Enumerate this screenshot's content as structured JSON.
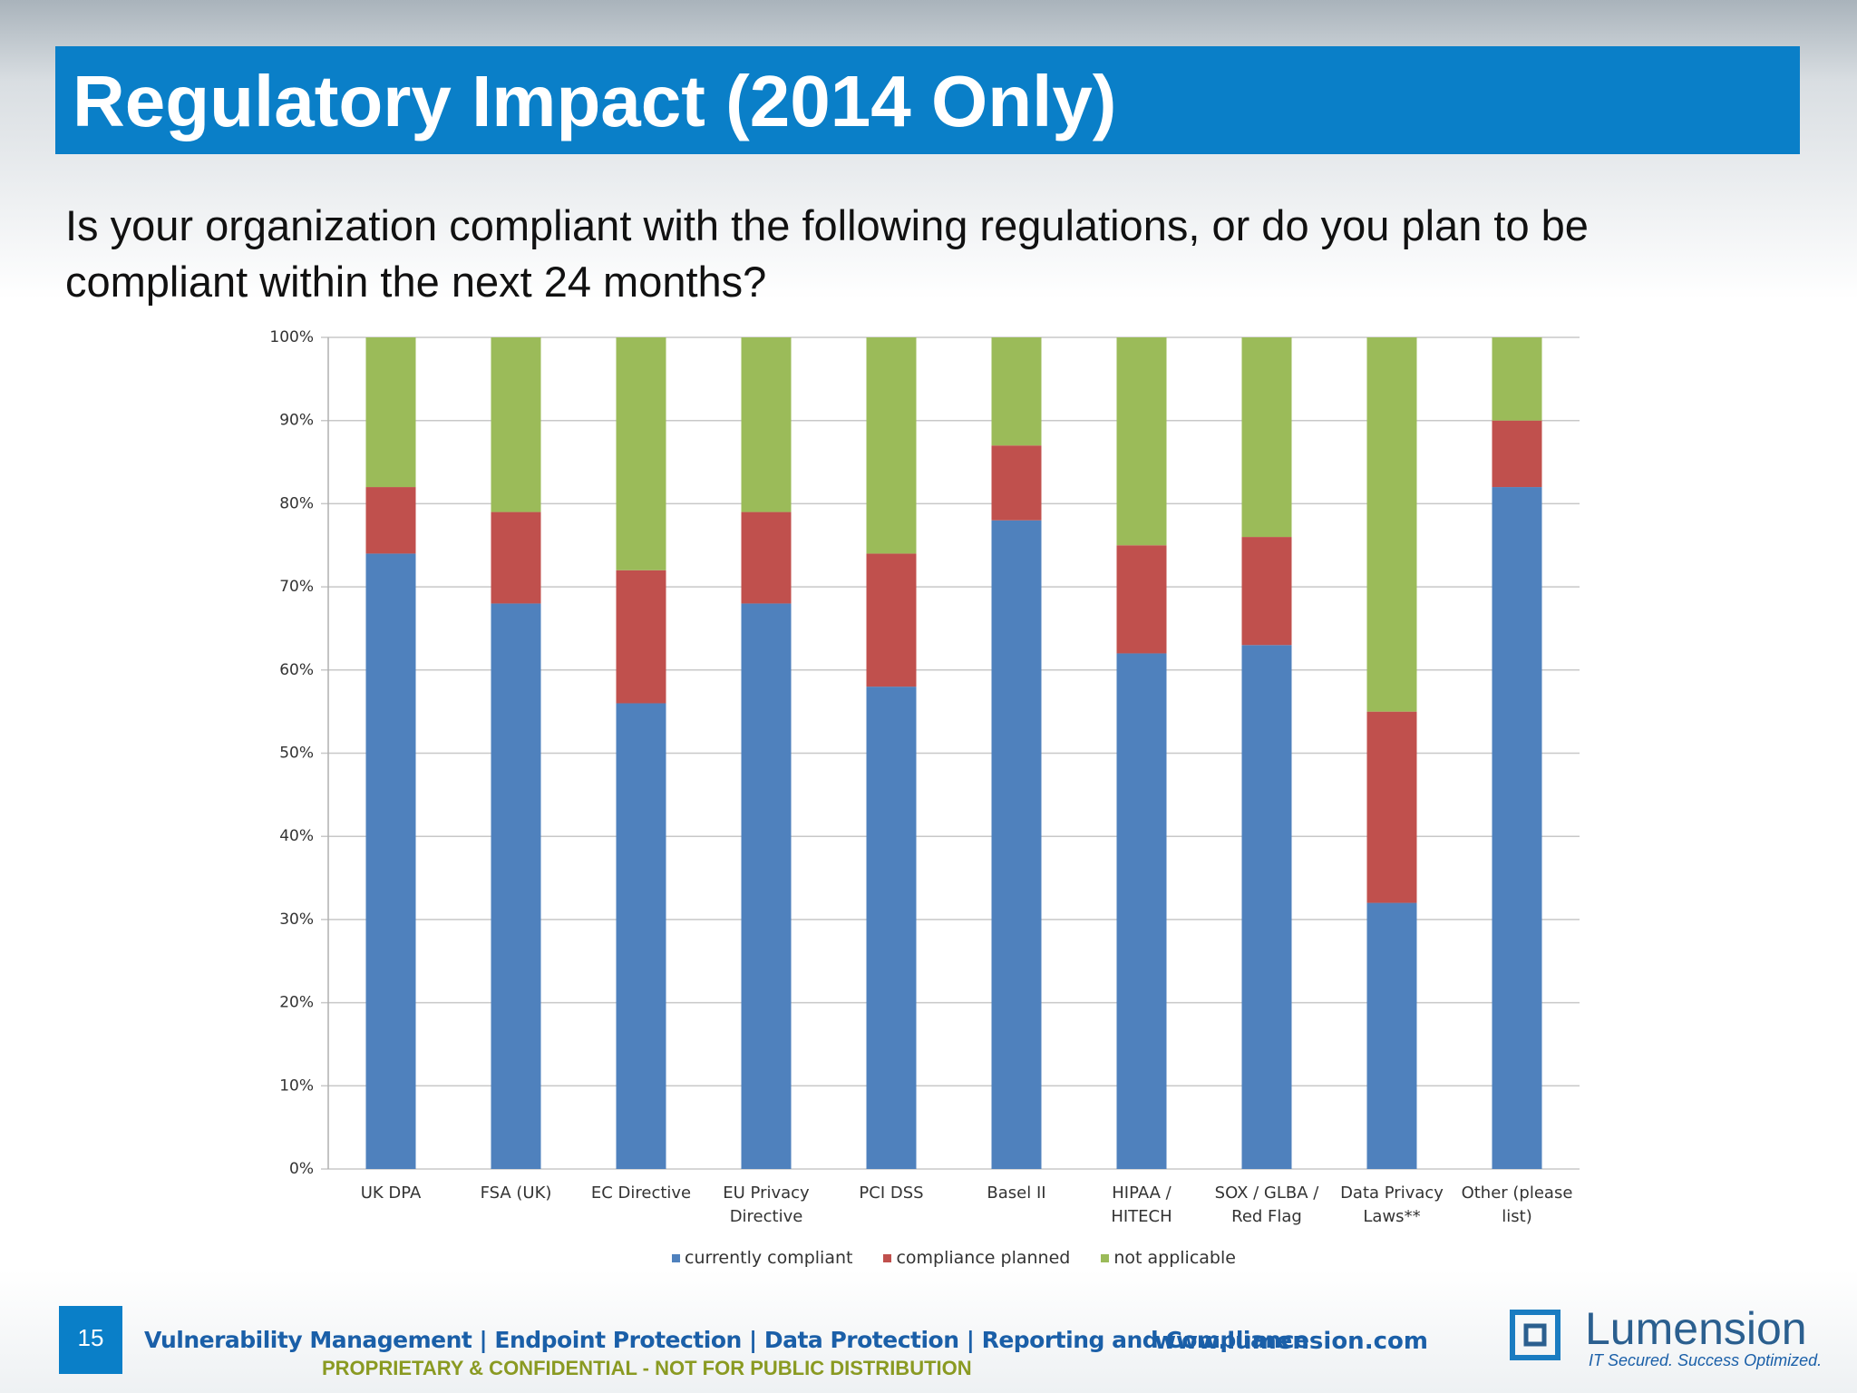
{
  "slide": {
    "title": "Regulatory Impact (2014 Only)",
    "question": "Is your organization compliant with the following regulations, or do you plan to be compliant within the next 24 months?",
    "page_number": "15",
    "tagline": "Vulnerability Management | Endpoint Protection | Data Protection | Reporting and Compliance",
    "confidential": "PROPRIETARY & CONFIDENTIAL - NOT FOR PUBLIC DISTRIBUTION",
    "website": "www.lumension.com",
    "logo": "Lumension",
    "logo_slogan": "IT Secured. Success Optimized."
  },
  "chart_data": {
    "type": "stacked_bar",
    "categories": [
      "UK DPA",
      "FSA (UK)",
      "EC Directive",
      "EU Privacy\nDirective",
      "PCI DSS",
      "Basel II",
      "HIPAA /\nHITECH",
      "SOX / GLBA /\nRed Flag",
      "Data Privacy\nLaws**",
      "Other  (please\nlist)"
    ],
    "series": [
      {
        "name": "currently compliant",
        "color": "#4f81bd",
        "values": [
          74,
          68,
          56,
          68,
          58,
          78,
          62,
          63,
          32,
          82
        ]
      },
      {
        "name": "compliance planned",
        "color": "#c0504d",
        "values": [
          8,
          11,
          16,
          11,
          16,
          9,
          13,
          13,
          23,
          8
        ]
      },
      {
        "name": "not applicable",
        "color": "#9bbb59",
        "values": [
          18,
          21,
          28,
          21,
          26,
          13,
          25,
          24,
          45,
          10
        ]
      }
    ],
    "ylim": [
      0,
      100
    ],
    "yticks": [
      {
        "value": 0,
        "label": "0%"
      },
      {
        "value": 10,
        "label": "10%"
      },
      {
        "value": 20,
        "label": "20%"
      },
      {
        "value": 30,
        "label": "30%"
      },
      {
        "value": 40,
        "label": "40%"
      },
      {
        "value": 50,
        "label": "50%"
      },
      {
        "value": 60,
        "label": "60%"
      },
      {
        "value": 70,
        "label": "70%"
      },
      {
        "value": 80,
        "label": "80%"
      },
      {
        "value": 90,
        "label": "90%"
      },
      {
        "value": 100,
        "label": "100%"
      }
    ],
    "grid": true,
    "legend": "bottom"
  }
}
